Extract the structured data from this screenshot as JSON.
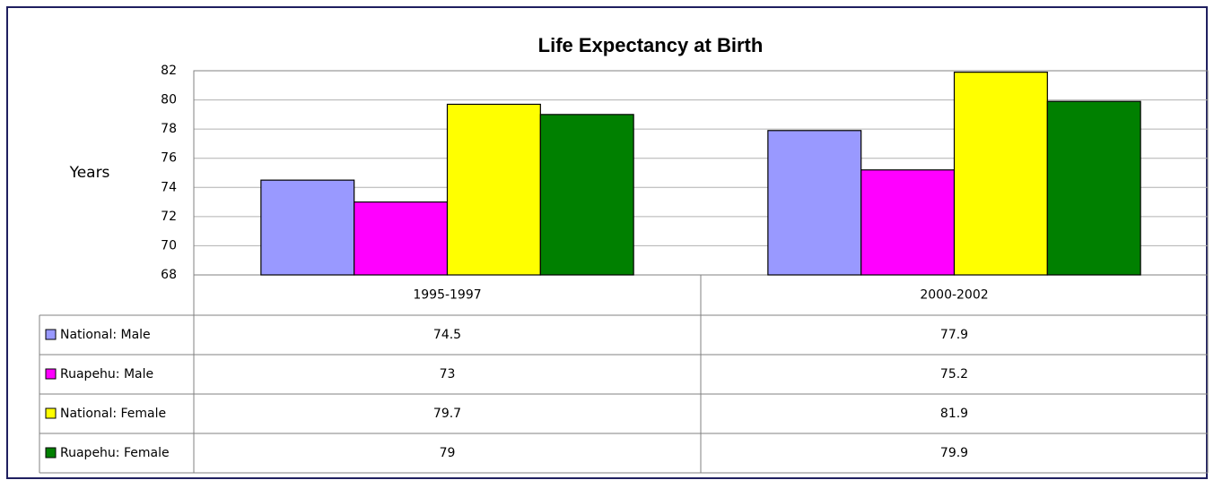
{
  "chart_data": {
    "type": "bar",
    "title": "Life Expectancy at Birth",
    "y_label": "Years",
    "categories": [
      "1995-1997",
      "2000-2002"
    ],
    "series": [
      {
        "name": "National: Male",
        "color": "#9999ff",
        "values": [
          74.5,
          77.9
        ]
      },
      {
        "name": "Ruapehu: Male",
        "color": "#ff00ff",
        "values": [
          73,
          75.2
        ]
      },
      {
        "name": "National: Female",
        "color": "#ffff00",
        "values": [
          79.7,
          81.9
        ]
      },
      {
        "name": "Ruapehu: Female",
        "color": "#008000",
        "values": [
          79,
          79.9
        ]
      }
    ],
    "ylim": [
      68,
      82
    ],
    "yticks": [
      68,
      70,
      72,
      74,
      76,
      78,
      80,
      82
    ],
    "grid": true
  }
}
